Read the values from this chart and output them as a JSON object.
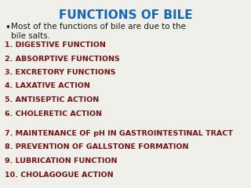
{
  "title": "FUNCTIONS OF BILE",
  "title_color": "#1565C0",
  "title_fontsize": 11,
  "title_fontweight": "bold",
  "bullet_text": "Most of the functions of bile are due to the\nbile salts.",
  "bullet_color": "#1a1a1a",
  "bullet_fontsize": 7.5,
  "items": [
    "1. DIGESTIVE FUNCTION",
    "2. ABSORPTIVE FUNCTIONS",
    "3. EXCRETORY FUNCTIONS",
    "4. LAXATIVE ACTION",
    "5. ANTISEPTIC ACTION",
    "6. CHOLERETIC ACTION",
    "",
    "7. MAINTENANCE OF pH IN GASTROINTESTINAL TRACT",
    "8. PREVENTION OF GALLSTONE FORMATION",
    "9. LUBRICATION FUNCTION",
    "10. CHOLAGOGUE ACTION"
  ],
  "item_color": "#7B1010",
  "item_fontsize": 6.8,
  "item_fontweight": "bold",
  "background_color": "#f0f0ea"
}
